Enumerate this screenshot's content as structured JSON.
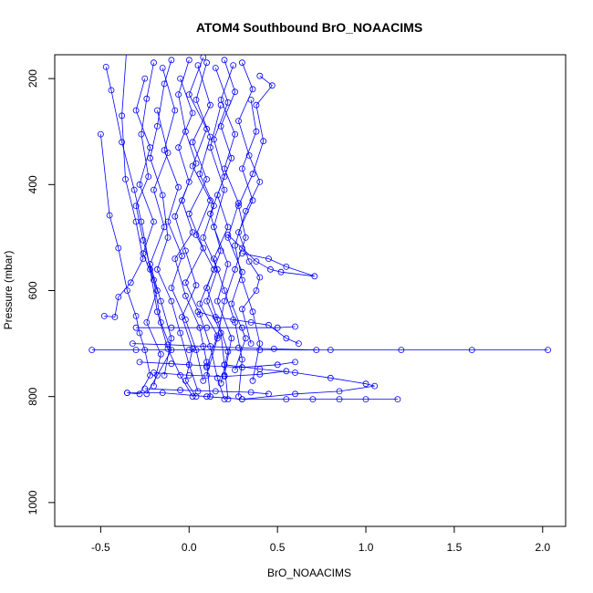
{
  "chart_data": {
    "type": "scatter",
    "title": "ATOM4 Southbound BrO_NOAACIMS",
    "xlabel": "BrO_NOAACIMS",
    "ylabel": "Pressure (mbar)",
    "xlim": [
      -0.76,
      2.13
    ],
    "ylim": [
      1045,
      155
    ],
    "y_reversed": true,
    "x_ticks": [
      -0.5,
      0.0,
      0.5,
      1.0,
      1.5,
      2.0
    ],
    "x_tick_labels": [
      "-0.5",
      "0.0",
      "0.5",
      "1.0",
      "1.5",
      "2.0"
    ],
    "y_ticks": [
      200,
      400,
      600,
      800,
      1000
    ],
    "y_tick_labels": [
      "200",
      "400",
      "600",
      "800",
      "1000"
    ],
    "grid": false,
    "legend": "none",
    "series_color": "#0000ff",
    "marker": "open-circle",
    "connected": true,
    "profiles": [
      [
        [
          -0.47,
          178
        ],
        [
          -0.44,
          222
        ],
        [
          -0.38,
          320
        ],
        [
          -0.31,
          410
        ],
        [
          -0.27,
          470
        ],
        [
          -0.22,
          560
        ],
        [
          -0.18,
          640
        ],
        [
          -0.12,
          710
        ],
        [
          -0.05,
          760
        ],
        [
          0.02,
          800
        ]
      ],
      [
        [
          -0.5,
          305
        ],
        [
          -0.45,
          458
        ],
        [
          -0.4,
          520
        ],
        [
          -0.35,
          600
        ],
        [
          -0.3,
          648
        ],
        [
          -0.28,
          680
        ],
        [
          -0.25,
          712
        ],
        [
          -0.22,
          760
        ],
        [
          -0.28,
          795
        ],
        [
          -0.35,
          793
        ]
      ],
      [
        [
          -0.35,
          130
        ],
        [
          -0.38,
          270
        ],
        [
          -0.36,
          390
        ],
        [
          -0.3,
          470
        ],
        [
          -0.26,
          540
        ],
        [
          -0.33,
          585
        ],
        [
          -0.4,
          612
        ],
        [
          -0.42,
          650
        ],
        [
          -0.48,
          648
        ]
      ],
      [
        [
          -0.2,
          170
        ],
        [
          -0.24,
          238
        ],
        [
          -0.27,
          305
        ],
        [
          -0.23,
          385
        ],
        [
          -0.3,
          440
        ],
        [
          -0.26,
          505
        ],
        [
          -0.2,
          580
        ],
        [
          -0.16,
          660
        ],
        [
          -0.1,
          712
        ],
        [
          -0.18,
          760
        ],
        [
          -0.24,
          795
        ]
      ],
      [
        [
          -0.1,
          165
        ],
        [
          -0.14,
          210
        ],
        [
          -0.18,
          290
        ],
        [
          -0.22,
          350
        ],
        [
          -0.15,
          420
        ],
        [
          -0.12,
          500
        ],
        [
          -0.18,
          560
        ],
        [
          -0.1,
          620
        ],
        [
          -0.05,
          680
        ],
        [
          0.0,
          740
        ],
        [
          0.05,
          790
        ]
      ],
      [
        [
          0.0,
          165
        ],
        [
          -0.06,
          230
        ],
        [
          -0.02,
          300
        ],
        [
          0.04,
          360
        ],
        [
          -0.04,
          430
        ],
        [
          0.02,
          490
        ],
        [
          -0.08,
          540
        ],
        [
          -0.02,
          610
        ],
        [
          0.06,
          670
        ],
        [
          0.1,
          735
        ],
        [
          0.12,
          800
        ]
      ],
      [
        [
          0.1,
          170
        ],
        [
          0.04,
          240
        ],
        [
          0.12,
          310
        ],
        [
          0.06,
          380
        ],
        [
          0.14,
          440
        ],
        [
          0.08,
          500
        ],
        [
          0.16,
          560
        ],
        [
          0.1,
          620
        ],
        [
          0.18,
          680
        ],
        [
          0.2,
          740
        ],
        [
          0.22,
          805
        ]
      ],
      [
        [
          0.2,
          165
        ],
        [
          0.26,
          225
        ],
        [
          0.18,
          290
        ],
        [
          0.24,
          350
        ],
        [
          0.16,
          420
        ],
        [
          0.22,
          480
        ],
        [
          0.14,
          540
        ],
        [
          0.2,
          600
        ],
        [
          0.26,
          660
        ],
        [
          0.3,
          730
        ],
        [
          0.28,
          800
        ]
      ],
      [
        [
          0.3,
          170
        ],
        [
          0.36,
          220
        ],
        [
          0.28,
          280
        ],
        [
          0.34,
          345
        ],
        [
          0.4,
          395
        ],
        [
          0.32,
          450
        ],
        [
          0.26,
          515
        ],
        [
          0.3,
          580
        ],
        [
          0.36,
          640
        ],
        [
          0.4,
          700
        ],
        [
          0.36,
          770
        ]
      ],
      [
        [
          0.4,
          195
        ],
        [
          0.47,
          213
        ],
        [
          0.38,
          250
        ],
        [
          0.42,
          318
        ],
        [
          0.36,
          380
        ],
        [
          0.28,
          440
        ],
        [
          0.32,
          500
        ],
        [
          0.26,
          560
        ],
        [
          0.2,
          620
        ],
        [
          0.16,
          690
        ],
        [
          0.1,
          760
        ]
      ],
      [
        [
          -0.15,
          180
        ],
        [
          -0.08,
          260
        ],
        [
          -0.14,
          335
        ],
        [
          -0.06,
          405
        ],
        [
          -0.12,
          470
        ],
        [
          -0.04,
          535
        ],
        [
          -0.1,
          595
        ],
        [
          -0.02,
          655
        ],
        [
          0.04,
          712
        ],
        [
          0.08,
          770
        ]
      ],
      [
        [
          0.05,
          175
        ],
        [
          0.12,
          250
        ],
        [
          0.02,
          320
        ],
        [
          0.1,
          390
        ],
        [
          0.0,
          455
        ],
        [
          0.08,
          520
        ],
        [
          -0.02,
          585
        ],
        [
          0.06,
          645
        ],
        [
          0.12,
          705
        ],
        [
          0.16,
          765
        ],
        [
          0.2,
          805
        ]
      ],
      [
        [
          -0.25,
          200
        ],
        [
          -0.3,
          260
        ],
        [
          -0.22,
          330
        ],
        [
          -0.28,
          400
        ],
        [
          -0.2,
          470
        ],
        [
          -0.26,
          530
        ],
        [
          -0.18,
          600
        ],
        [
          -0.24,
          660
        ],
        [
          -0.16,
          720
        ],
        [
          -0.2,
          780
        ]
      ],
      [
        [
          0.15,
          180
        ],
        [
          0.22,
          245
        ],
        [
          0.14,
          315
        ],
        [
          0.2,
          385
        ],
        [
          0.12,
          455
        ],
        [
          0.18,
          525
        ],
        [
          0.1,
          595
        ],
        [
          0.16,
          655
        ],
        [
          0.22,
          715
        ],
        [
          0.18,
          775
        ]
      ],
      [
        [
          0.25,
          175
        ],
        [
          0.18,
          240
        ],
        [
          0.26,
          305
        ],
        [
          0.2,
          370
        ],
        [
          0.28,
          435
        ],
        [
          0.22,
          500
        ],
        [
          0.3,
          565
        ],
        [
          0.24,
          625
        ],
        [
          0.32,
          690
        ],
        [
          0.26,
          750
        ]
      ],
      [
        [
          -0.05,
          200
        ],
        [
          0.02,
          265
        ],
        [
          -0.06,
          330
        ],
        [
          0.0,
          395
        ],
        [
          -0.08,
          460
        ],
        [
          -0.02,
          525
        ],
        [
          0.04,
          590
        ],
        [
          -0.04,
          650
        ],
        [
          0.02,
          710
        ],
        [
          -0.02,
          770
        ],
        [
          0.04,
          800
        ]
      ],
      [
        [
          0.08,
          160
        ],
        [
          0.0,
          230
        ],
        [
          0.1,
          295
        ],
        [
          0.02,
          365
        ],
        [
          0.12,
          430
        ],
        [
          0.04,
          495
        ],
        [
          0.14,
          560
        ],
        [
          0.06,
          625
        ],
        [
          0.16,
          685
        ],
        [
          0.1,
          745
        ]
      ],
      [
        [
          0.35,
          240
        ],
        [
          0.38,
          300
        ],
        [
          0.3,
          370
        ],
        [
          0.36,
          430
        ],
        [
          0.28,
          490
        ],
        [
          0.34,
          545
        ],
        [
          0.4,
          575
        ],
        [
          0.38,
          600
        ],
        [
          0.3,
          635
        ],
        [
          0.35,
          700
        ]
      ],
      [
        [
          0.18,
          250
        ],
        [
          0.12,
          330
        ],
        [
          0.2,
          410
        ],
        [
          0.14,
          480
        ],
        [
          0.22,
          550
        ],
        [
          0.16,
          620
        ],
        [
          0.24,
          690
        ],
        [
          0.2,
          760
        ]
      ],
      [
        [
          -0.18,
          260
        ],
        [
          -0.12,
          340
        ],
        [
          -0.2,
          410
        ],
        [
          -0.14,
          480
        ],
        [
          -0.22,
          550
        ],
        [
          -0.16,
          620
        ],
        [
          -0.1,
          690
        ],
        [
          -0.14,
          760
        ]
      ],
      [
        [
          0.22,
          495
        ],
        [
          0.3,
          520
        ],
        [
          0.38,
          545
        ],
        [
          0.46,
          560
        ],
        [
          0.52,
          565
        ],
        [
          0.71,
          573
        ],
        [
          0.55,
          555
        ],
        [
          0.45,
          540
        ],
        [
          0.3,
          530
        ]
      ],
      [
        [
          -0.55,
          712
        ],
        [
          -0.3,
          712
        ],
        [
          0.0,
          712
        ],
        [
          0.4,
          712
        ],
        [
          0.8,
          712
        ],
        [
          1.2,
          712
        ],
        [
          1.6,
          712
        ],
        [
          2.03,
          712
        ]
      ],
      [
        [
          -0.35,
          793
        ],
        [
          -0.15,
          793
        ],
        [
          0.1,
          800
        ],
        [
          0.3,
          805
        ],
        [
          0.55,
          805
        ],
        [
          0.7,
          805
        ],
        [
          0.85,
          805
        ],
        [
          1.0,
          805
        ],
        [
          1.18,
          805
        ]
      ],
      [
        [
          0.2,
          740
        ],
        [
          0.4,
          748
        ],
        [
          0.6,
          755
        ],
        [
          0.8,
          765
        ],
        [
          1.0,
          776
        ],
        [
          1.05,
          780
        ],
        [
          0.85,
          790
        ],
        [
          0.6,
          795
        ],
        [
          0.3,
          805
        ]
      ],
      [
        [
          -0.3,
          670
        ],
        [
          -0.1,
          670
        ],
        [
          0.1,
          670
        ],
        [
          0.3,
          670
        ],
        [
          0.5,
          670
        ],
        [
          0.6,
          668
        ]
      ],
      [
        [
          -0.28,
          735
        ],
        [
          -0.1,
          738
        ],
        [
          0.1,
          742
        ],
        [
          0.3,
          745
        ],
        [
          0.5,
          740
        ],
        [
          0.6,
          735
        ]
      ],
      [
        [
          -0.2,
          755
        ],
        [
          0.0,
          760
        ],
        [
          0.2,
          762
        ],
        [
          0.4,
          758
        ],
        [
          0.55,
          752
        ]
      ],
      [
        [
          -0.32,
          700
        ],
        [
          -0.12,
          702
        ],
        [
          0.08,
          705
        ],
        [
          0.28,
          708
        ],
        [
          0.48,
          710
        ],
        [
          0.72,
          712
        ]
      ],
      [
        [
          -0.25,
          785
        ],
        [
          -0.05,
          788
        ],
        [
          0.15,
          790
        ],
        [
          0.35,
          792
        ],
        [
          0.45,
          795
        ]
      ],
      [
        [
          0.05,
          640
        ],
        [
          0.15,
          650
        ],
        [
          0.25,
          655
        ],
        [
          0.35,
          660
        ],
        [
          0.45,
          665
        ],
        [
          0.55,
          690
        ],
        [
          0.62,
          700
        ]
      ]
    ]
  }
}
